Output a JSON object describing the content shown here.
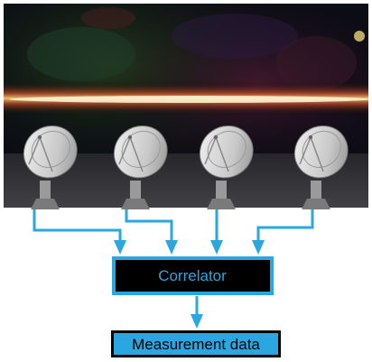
{
  "diagram": {
    "correlator_label": "Correlator",
    "output_label": "Measurement data",
    "antenna_count": 4,
    "colors": {
      "arrow": "#2aa7e0",
      "correlator_fill": "#000000",
      "correlator_text": "#2aa7e0",
      "output_fill": "#2aa7e0",
      "output_text": "#000000",
      "sky_background": "#0b0c14",
      "galactic_band": "#f2a33a"
    },
    "icons": [
      "radio-dish-icon",
      "milky-way-sky-image"
    ]
  }
}
